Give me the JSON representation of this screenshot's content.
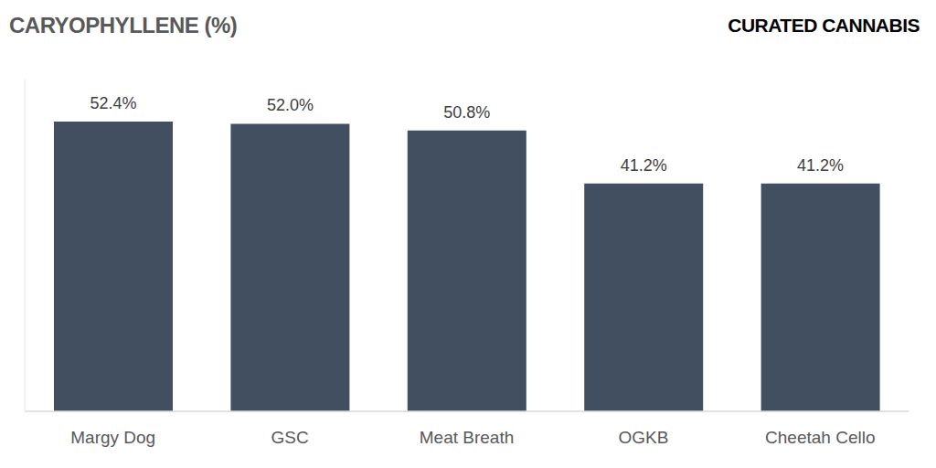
{
  "chart_data": {
    "type": "bar",
    "title": "CARYOPHYLLENE (%)",
    "annotations": [
      "CURATED CANNABIS"
    ],
    "categories": [
      "Margy Dog",
      "GSC",
      "Meat Breath",
      "OGKB",
      "Cheetah Cello"
    ],
    "values": [
      52.4,
      52.0,
      50.8,
      41.2,
      41.2
    ],
    "value_labels": [
      "52.4%",
      "52.0%",
      "50.8%",
      "41.2%",
      "41.2%"
    ],
    "color": "#424f60",
    "ylim": [
      0,
      60
    ],
    "grid": false,
    "data_labels": true,
    "tick_labels": "x"
  }
}
